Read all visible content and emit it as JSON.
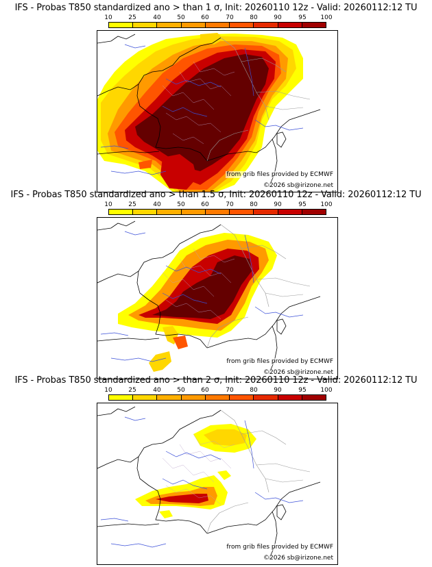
{
  "colorbar": {
    "labels": [
      "10",
      "25",
      "40",
      "50",
      "60",
      "70",
      "80",
      "90",
      "95",
      "100"
    ],
    "colors": [
      "#ffff00",
      "#ffd700",
      "#ffb000",
      "#ff9a00",
      "#ff7a00",
      "#ff5500",
      "#e62a00",
      "#c80000",
      "#a00000",
      "#640000"
    ]
  },
  "panels": [
    {
      "title": "IFS - Probas T850  standardized ano > than 1 σ, Init: 20260110 12z - Valid: 20260112:12 TU",
      "credit_source": "from grib files provided by ECMWF",
      "credit_site": "©2026 sb@irizone.net"
    },
    {
      "title": "IFS - Probas T850  standardized ano > than 1.5 σ, Init: 20260110 12z - Valid: 20260112:12 TU",
      "credit_source": "from grib files provided by ECMWF",
      "credit_site": "©2026 sb@irizone.net"
    },
    {
      "title": "IFS - Probas T850  standardized ano > than 2 σ, Init: 20260110 12z - Valid: 20260112:12 TU",
      "credit_source": "from grib files provided by ECMWF",
      "credit_site": "©2026 sb@irizone.net"
    }
  ]
}
